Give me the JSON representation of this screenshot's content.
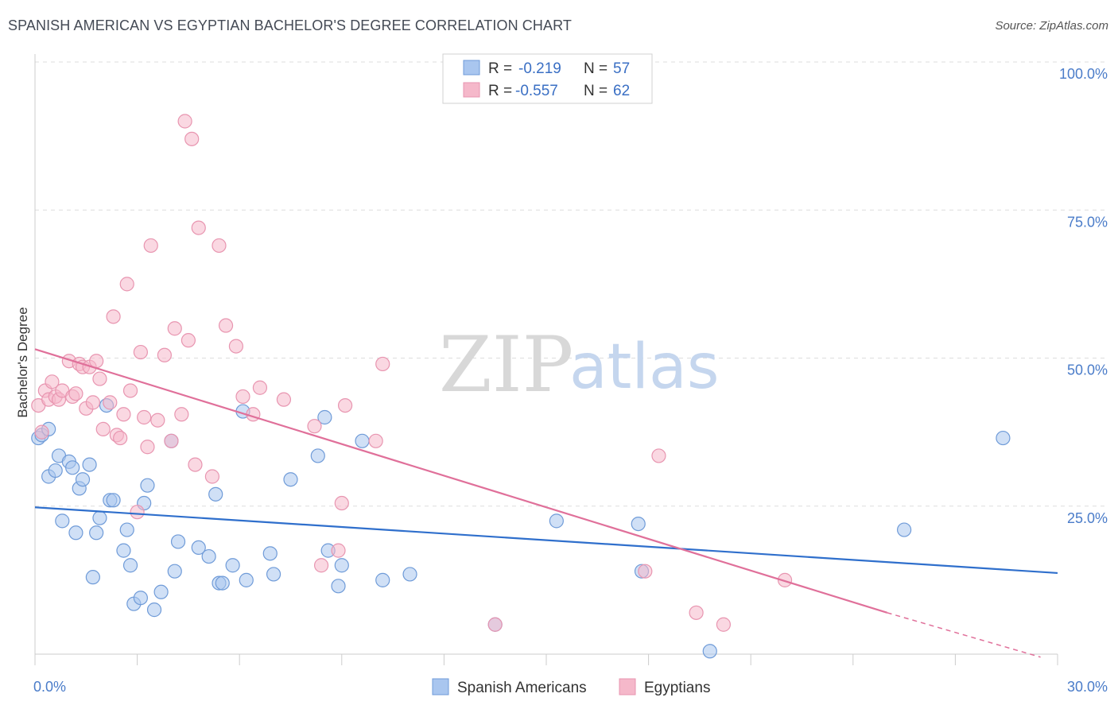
{
  "title": "SPANISH AMERICAN VS EGYPTIAN BACHELOR'S DEGREE CORRELATION CHART",
  "source": "Source: ZipAtlas.com",
  "watermark": {
    "zip": "ZIP",
    "atlas": "atlas"
  },
  "colors": {
    "blue_fill": "#a9c6ef",
    "blue_stroke": "#6f9bd8",
    "blue_line": "#2f6fcc",
    "pink_fill": "#f5b8ca",
    "pink_stroke": "#e895b0",
    "pink_line": "#e0709a",
    "tick_text": "#4a7cc9",
    "grid": "#dddddd"
  },
  "legend": {
    "entries": [
      {
        "r_label": "R =",
        "r_value": "-0.219",
        "n_label": "N =",
        "n_value": "57",
        "color": "blue"
      },
      {
        "r_label": "R =",
        "r_value": "-0.557",
        "n_label": "N =",
        "n_value": "62",
        "color": "pink"
      }
    ]
  },
  "bottom_legend": [
    "Spanish Americans",
    "Egyptians"
  ],
  "chart_data": {
    "type": "scatter",
    "xlabel": "",
    "ylabel": "Bachelor's Degree",
    "xlim": [
      0,
      30
    ],
    "ylim": [
      0,
      100
    ],
    "x_tick_labels": [
      {
        "value": 0,
        "label": "0.0%"
      },
      {
        "value": 30,
        "label": "30.0%"
      }
    ],
    "y_tick_labels": [
      {
        "value": 100,
        "label": "100.0%"
      },
      {
        "value": 75,
        "label": "75.0%"
      },
      {
        "value": 50,
        "label": "50.0%"
      },
      {
        "value": 25,
        "label": "25.0%"
      }
    ],
    "grid": true,
    "legend_position": "top-center",
    "series": [
      {
        "name": "Spanish Americans",
        "r": -0.219,
        "n": 57,
        "trend": {
          "x": [
            0,
            30
          ],
          "y": [
            24.8,
            13.7
          ]
        },
        "points": [
          [
            0.1,
            36.5
          ],
          [
            0.2,
            37.0
          ],
          [
            0.4,
            38.0
          ],
          [
            0.4,
            30.0
          ],
          [
            0.6,
            31.0
          ],
          [
            0.7,
            33.5
          ],
          [
            0.8,
            22.5
          ],
          [
            1.0,
            32.5
          ],
          [
            1.1,
            31.5
          ],
          [
            1.2,
            20.5
          ],
          [
            1.3,
            28.0
          ],
          [
            1.4,
            29.5
          ],
          [
            1.6,
            32.0
          ],
          [
            1.7,
            13.0
          ],
          [
            1.8,
            20.5
          ],
          [
            1.9,
            23.0
          ],
          [
            2.1,
            42.0
          ],
          [
            2.2,
            26.0
          ],
          [
            2.3,
            26.0
          ],
          [
            2.6,
            17.5
          ],
          [
            2.7,
            21.0
          ],
          [
            2.8,
            15.0
          ],
          [
            2.9,
            8.5
          ],
          [
            3.1,
            9.5
          ],
          [
            3.2,
            25.5
          ],
          [
            3.3,
            28.5
          ],
          [
            3.5,
            7.5
          ],
          [
            3.7,
            10.5
          ],
          [
            4.0,
            36.0
          ],
          [
            4.1,
            14.0
          ],
          [
            4.2,
            19.0
          ],
          [
            4.8,
            18.0
          ],
          [
            5.1,
            16.5
          ],
          [
            5.3,
            27.0
          ],
          [
            5.4,
            12.0
          ],
          [
            5.5,
            12.0
          ],
          [
            5.8,
            15.0
          ],
          [
            6.1,
            41.0
          ],
          [
            6.2,
            12.5
          ],
          [
            6.9,
            17.0
          ],
          [
            7.0,
            13.5
          ],
          [
            7.5,
            29.5
          ],
          [
            8.3,
            33.5
          ],
          [
            8.5,
            40.0
          ],
          [
            8.6,
            17.5
          ],
          [
            8.9,
            11.5
          ],
          [
            9.0,
            15.0
          ],
          [
            9.6,
            36.0
          ],
          [
            10.2,
            12.5
          ],
          [
            11.0,
            13.5
          ],
          [
            13.5,
            5.0
          ],
          [
            15.3,
            22.5
          ],
          [
            17.7,
            22.0
          ],
          [
            17.8,
            14.0
          ],
          [
            19.8,
            0.5
          ],
          [
            25.5,
            21.0
          ],
          [
            28.4,
            36.5
          ]
        ]
      },
      {
        "name": "Egyptians",
        "r": -0.557,
        "n": 62,
        "trend": {
          "x": [
            0,
            25.0
          ],
          "y": [
            51.5,
            7.0
          ]
        },
        "trend_dashed": {
          "x": [
            25.0,
            29.5
          ],
          "y": [
            7.0,
            -0.5
          ]
        },
        "points": [
          [
            0.1,
            42.0
          ],
          [
            0.2,
            37.5
          ],
          [
            0.3,
            44.5
          ],
          [
            0.4,
            43.0
          ],
          [
            0.5,
            46.0
          ],
          [
            0.6,
            43.5
          ],
          [
            0.7,
            43.0
          ],
          [
            0.8,
            44.5
          ],
          [
            1.0,
            49.5
          ],
          [
            1.1,
            43.5
          ],
          [
            1.2,
            44.0
          ],
          [
            1.3,
            49.0
          ],
          [
            1.4,
            48.5
          ],
          [
            1.5,
            41.5
          ],
          [
            1.6,
            48.5
          ],
          [
            1.7,
            42.5
          ],
          [
            1.8,
            49.5
          ],
          [
            1.9,
            46.5
          ],
          [
            2.0,
            38.0
          ],
          [
            2.2,
            42.5
          ],
          [
            2.3,
            57.0
          ],
          [
            2.4,
            37.0
          ],
          [
            2.5,
            36.5
          ],
          [
            2.6,
            40.5
          ],
          [
            2.7,
            62.5
          ],
          [
            2.8,
            44.5
          ],
          [
            3.0,
            24.0
          ],
          [
            3.1,
            51.0
          ],
          [
            3.2,
            40.0
          ],
          [
            3.3,
            35.0
          ],
          [
            3.4,
            69.0
          ],
          [
            3.6,
            39.5
          ],
          [
            3.8,
            50.5
          ],
          [
            4.0,
            36.0
          ],
          [
            4.1,
            55.0
          ],
          [
            4.3,
            40.5
          ],
          [
            4.4,
            90.0
          ],
          [
            4.5,
            53.0
          ],
          [
            4.6,
            87.0
          ],
          [
            4.7,
            32.0
          ],
          [
            4.8,
            72.0
          ],
          [
            5.2,
            30.0
          ],
          [
            5.4,
            69.0
          ],
          [
            5.6,
            55.5
          ],
          [
            5.9,
            52.0
          ],
          [
            6.1,
            43.5
          ],
          [
            6.4,
            40.5
          ],
          [
            6.6,
            45.0
          ],
          [
            7.3,
            43.0
          ],
          [
            8.2,
            38.5
          ],
          [
            8.4,
            15.0
          ],
          [
            8.9,
            17.5
          ],
          [
            9.0,
            25.5
          ],
          [
            9.1,
            42.0
          ],
          [
            10.0,
            36.0
          ],
          [
            10.2,
            49.0
          ],
          [
            13.5,
            5.0
          ],
          [
            17.9,
            14.0
          ],
          [
            18.3,
            33.5
          ],
          [
            19.4,
            7.0
          ],
          [
            20.2,
            5.0
          ],
          [
            22.0,
            12.5
          ]
        ]
      }
    ]
  }
}
